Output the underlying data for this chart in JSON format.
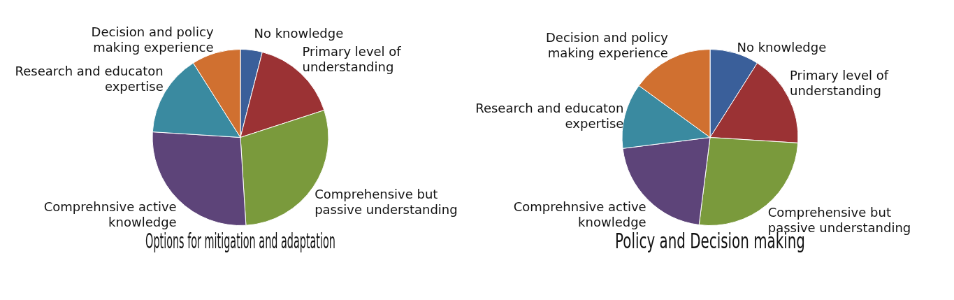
{
  "chart_data": [
    {
      "type": "pie",
      "title": "Options for mitigation and adaptation",
      "categories": [
        "No knowledge",
        "Primary level of understanding",
        "Comprehensive but passive understanding",
        "Comprehnsive active knowledge",
        "Research and educaton expertise",
        "Decision and policy making experience"
      ],
      "values": [
        4,
        16,
        29,
        27,
        15,
        9
      ],
      "colors": [
        "#3a5f9a",
        "#9b3234",
        "#7a9a3c",
        "#5d4479",
        "#3a8aa0",
        "#d07030"
      ]
    },
    {
      "type": "pie",
      "title": "Policy and Decision making",
      "categories": [
        "No knowledge",
        "Primary level of understanding",
        "Comprehensive but passive understanding",
        "Comprehnsive active knowledge",
        "Research and educaton expertise",
        "Decision and policy making experience"
      ],
      "values": [
        9,
        17,
        26,
        21,
        12,
        15
      ],
      "colors": [
        "#3a5f9a",
        "#9b3234",
        "#7a9a3c",
        "#5d4479",
        "#3a8aa0",
        "#d07030"
      ]
    }
  ]
}
